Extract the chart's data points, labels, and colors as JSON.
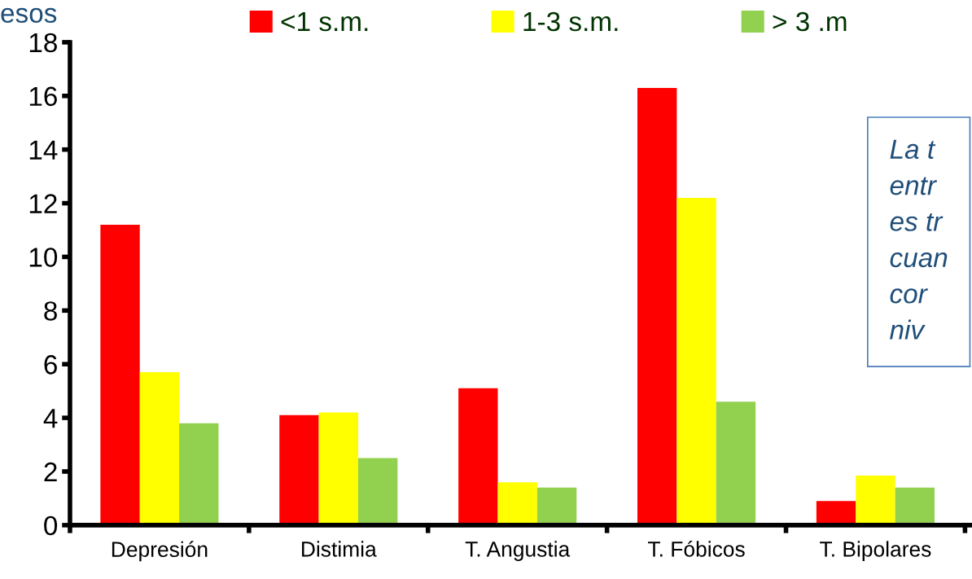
{
  "chart_data": {
    "type": "bar",
    "ylabel": "esos",
    "categories": [
      "Depresión",
      "Distimia",
      "T. Angustia",
      "T. Fóbicos",
      "T. Bipolares"
    ],
    "series": [
      {
        "name": "<1 s.m.",
        "color": "#ff0000",
        "values": [
          11.2,
          4.1,
          5.1,
          16.3,
          0.9
        ]
      },
      {
        "name": "1-3 s.m.",
        "color": "#ffff00",
        "values": [
          5.7,
          4.2,
          1.6,
          12.2,
          1.85
        ]
      },
      {
        "name": "> 3 .m",
        "color": "#92d050",
        "values": [
          3.8,
          2.5,
          1.4,
          4.6,
          1.4
        ]
      }
    ],
    "ylim": [
      0,
      18
    ],
    "yticks": [
      0,
      2,
      4,
      6,
      8,
      10,
      12,
      14,
      16,
      18
    ],
    "grid": false,
    "legend": "top",
    "annotations": [
      "La t\nentr\nes tr\ncuan\ncor\nniv"
    ]
  }
}
